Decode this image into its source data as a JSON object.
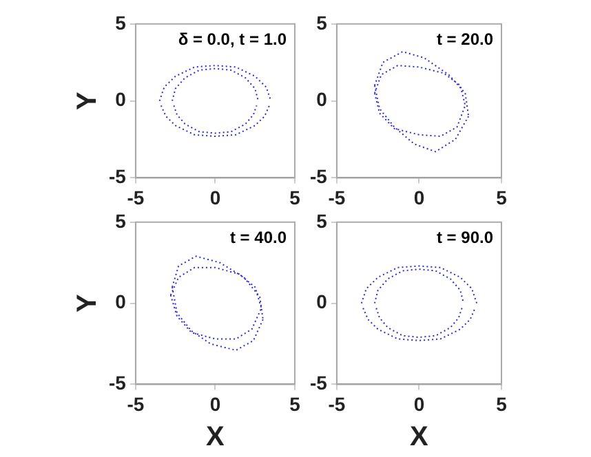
{
  "chart_data": [
    {
      "type": "line",
      "ylabel": "Y",
      "annotations": [
        "δ = 0.0, t = 1.0"
      ],
      "xlim": [
        -5,
        5
      ],
      "ylim": [
        -5,
        5
      ],
      "xticks": [
        -5,
        0,
        5
      ],
      "yticks": [
        -5,
        0,
        5
      ],
      "grid": false,
      "legend": false,
      "marker": "none",
      "line_style": "dotted",
      "series": [
        {
          "color": "#2b2bd0",
          "x": [
            -3.5,
            -3.2,
            -2.5,
            -1.3,
            0,
            1.3,
            2.5,
            3.2,
            3.5
          ],
          "values": [
            0,
            0.9,
            1.6,
            2.2,
            2.3,
            2.2,
            1.6,
            0.9,
            0
          ]
        },
        {
          "color": "#2b2bd0",
          "x": [
            -3.4,
            -3.1,
            -2.5,
            -1.3,
            0,
            1.3,
            2.5,
            3.1,
            3.4
          ],
          "values": [
            -0.3,
            -1,
            -1.6,
            -2.2,
            -2.3,
            -2.2,
            -1.6,
            -1,
            -0.3
          ]
        },
        {
          "color": "#2b2bd0",
          "x": [
            -2.7,
            -2.5,
            -1.9,
            -1,
            0,
            1,
            1.9,
            2.5,
            2.7
          ],
          "values": [
            0,
            0.8,
            1.5,
            2,
            2.1,
            2,
            1.5,
            0.8,
            0
          ]
        },
        {
          "color": "#2b2bd0",
          "x": [
            -2.6,
            -2.4,
            -1.9,
            -1,
            0,
            1,
            1.9,
            2.4,
            2.6
          ],
          "values": [
            -0.3,
            -0.9,
            -1.5,
            -2,
            -2.1,
            -2,
            -1.5,
            -0.9,
            -0.3
          ]
        }
      ]
    },
    {
      "type": "line",
      "annotations": [
        "t = 20.0"
      ],
      "xlim": [
        -5,
        5
      ],
      "ylim": [
        -5,
        5
      ],
      "xticks": [
        -5,
        0,
        5
      ],
      "yticks": [
        -5,
        0,
        5
      ],
      "grid": false,
      "legend": false,
      "marker": "none",
      "line_style": "dotted",
      "series": [
        {
          "color": "#2b2bd0",
          "x": [
            -2.7,
            -2.2,
            -1,
            0.3,
            1.8,
            2.8,
            3
          ],
          "values": [
            1,
            2.5,
            3.2,
            2.8,
            1.7,
            0.5,
            -1
          ]
        },
        {
          "color": "#2b2bd0",
          "x": [
            -2.7,
            -2.4,
            -1.5,
            -0.3,
            1,
            2.2,
            3
          ],
          "values": [
            1,
            -0.5,
            -1.7,
            -2.8,
            -3.3,
            -2.5,
            -1
          ]
        },
        {
          "color": "#2b2bd0",
          "x": [
            -2.7,
            -2.3,
            -1.3,
            0,
            1.5,
            2.5,
            2.8
          ],
          "values": [
            0.5,
            1.7,
            2.3,
            2.2,
            1.8,
            1,
            -0.3
          ]
        },
        {
          "color": "#2b2bd0",
          "x": [
            -2.7,
            -2.4,
            -1.5,
            0,
            1.3,
            2.3,
            2.8
          ],
          "values": [
            0.5,
            -0.8,
            -1.8,
            -2.2,
            -2.3,
            -1.7,
            -0.3
          ]
        }
      ]
    },
    {
      "type": "line",
      "xlabel": "X",
      "ylabel": "Y",
      "annotations": [
        "t = 40.0"
      ],
      "xlim": [
        -5,
        5
      ],
      "ylim": [
        -5,
        5
      ],
      "xticks": [
        -5,
        0,
        5
      ],
      "yticks": [
        -5,
        0,
        5
      ],
      "grid": false,
      "legend": false,
      "marker": "none",
      "line_style": "dotted",
      "series": [
        {
          "color": "#2b2bd0",
          "x": [
            -2.7,
            -2.3,
            -1.2,
            0.3,
            1.8,
            2.8,
            3
          ],
          "values": [
            1,
            2.3,
            2.9,
            2.5,
            1.6,
            0.4,
            -1
          ]
        },
        {
          "color": "#2b2bd0",
          "x": [
            -2.7,
            -2.4,
            -1.5,
            -0.3,
            1.3,
            2.4,
            3
          ],
          "values": [
            1,
            -0.6,
            -1.7,
            -2.5,
            -2.9,
            -2.3,
            -1
          ]
        },
        {
          "color": "#2b2bd0",
          "x": [
            -2.8,
            -2.3,
            -1.3,
            0,
            1.5,
            2.5,
            2.9
          ],
          "values": [
            0.5,
            1.6,
            2.2,
            2.2,
            1.8,
            1,
            -0.3
          ]
        },
        {
          "color": "#2b2bd0",
          "x": [
            -2.8,
            -2.4,
            -1.5,
            0,
            1.3,
            2.3,
            2.9
          ],
          "values": [
            0.5,
            -0.8,
            -1.8,
            -2.2,
            -2.2,
            -1.6,
            -0.3
          ]
        }
      ]
    },
    {
      "type": "line",
      "xlabel": "X",
      "annotations": [
        "t = 90.0"
      ],
      "xlim": [
        -5,
        5
      ],
      "ylim": [
        -5,
        5
      ],
      "xticks": [
        -5,
        0,
        5
      ],
      "yticks": [
        -5,
        0,
        5
      ],
      "grid": false,
      "legend": false,
      "marker": "none",
      "line_style": "dotted",
      "series": [
        {
          "color": "#2b2bd0",
          "x": [
            -3.5,
            -3.2,
            -2.5,
            -1.3,
            0,
            1.3,
            2.5,
            3.2,
            3.5
          ],
          "values": [
            0,
            0.9,
            1.6,
            2.2,
            2.3,
            2.2,
            1.6,
            0.9,
            0
          ]
        },
        {
          "color": "#2b2bd0",
          "x": [
            -3.4,
            -3.1,
            -2.5,
            -1.3,
            0,
            1.3,
            2.5,
            3.1,
            3.4
          ],
          "values": [
            -0.3,
            -1,
            -1.6,
            -2.2,
            -2.3,
            -2.2,
            -1.6,
            -1,
            -0.3
          ]
        },
        {
          "color": "#2b2bd0",
          "x": [
            -2.7,
            -2.5,
            -1.9,
            -1,
            0,
            1,
            1.9,
            2.5,
            2.7
          ],
          "values": [
            0,
            0.8,
            1.5,
            2,
            2.1,
            2,
            1.5,
            0.8,
            0
          ]
        },
        {
          "color": "#2b2bd0",
          "x": [
            -2.6,
            -2.4,
            -1.9,
            -1,
            0,
            1,
            1.9,
            2.4,
            2.6
          ],
          "values": [
            -0.3,
            -0.9,
            -1.5,
            -2,
            -2.1,
            -2,
            -1.5,
            -0.9,
            -0.3
          ]
        }
      ]
    }
  ]
}
